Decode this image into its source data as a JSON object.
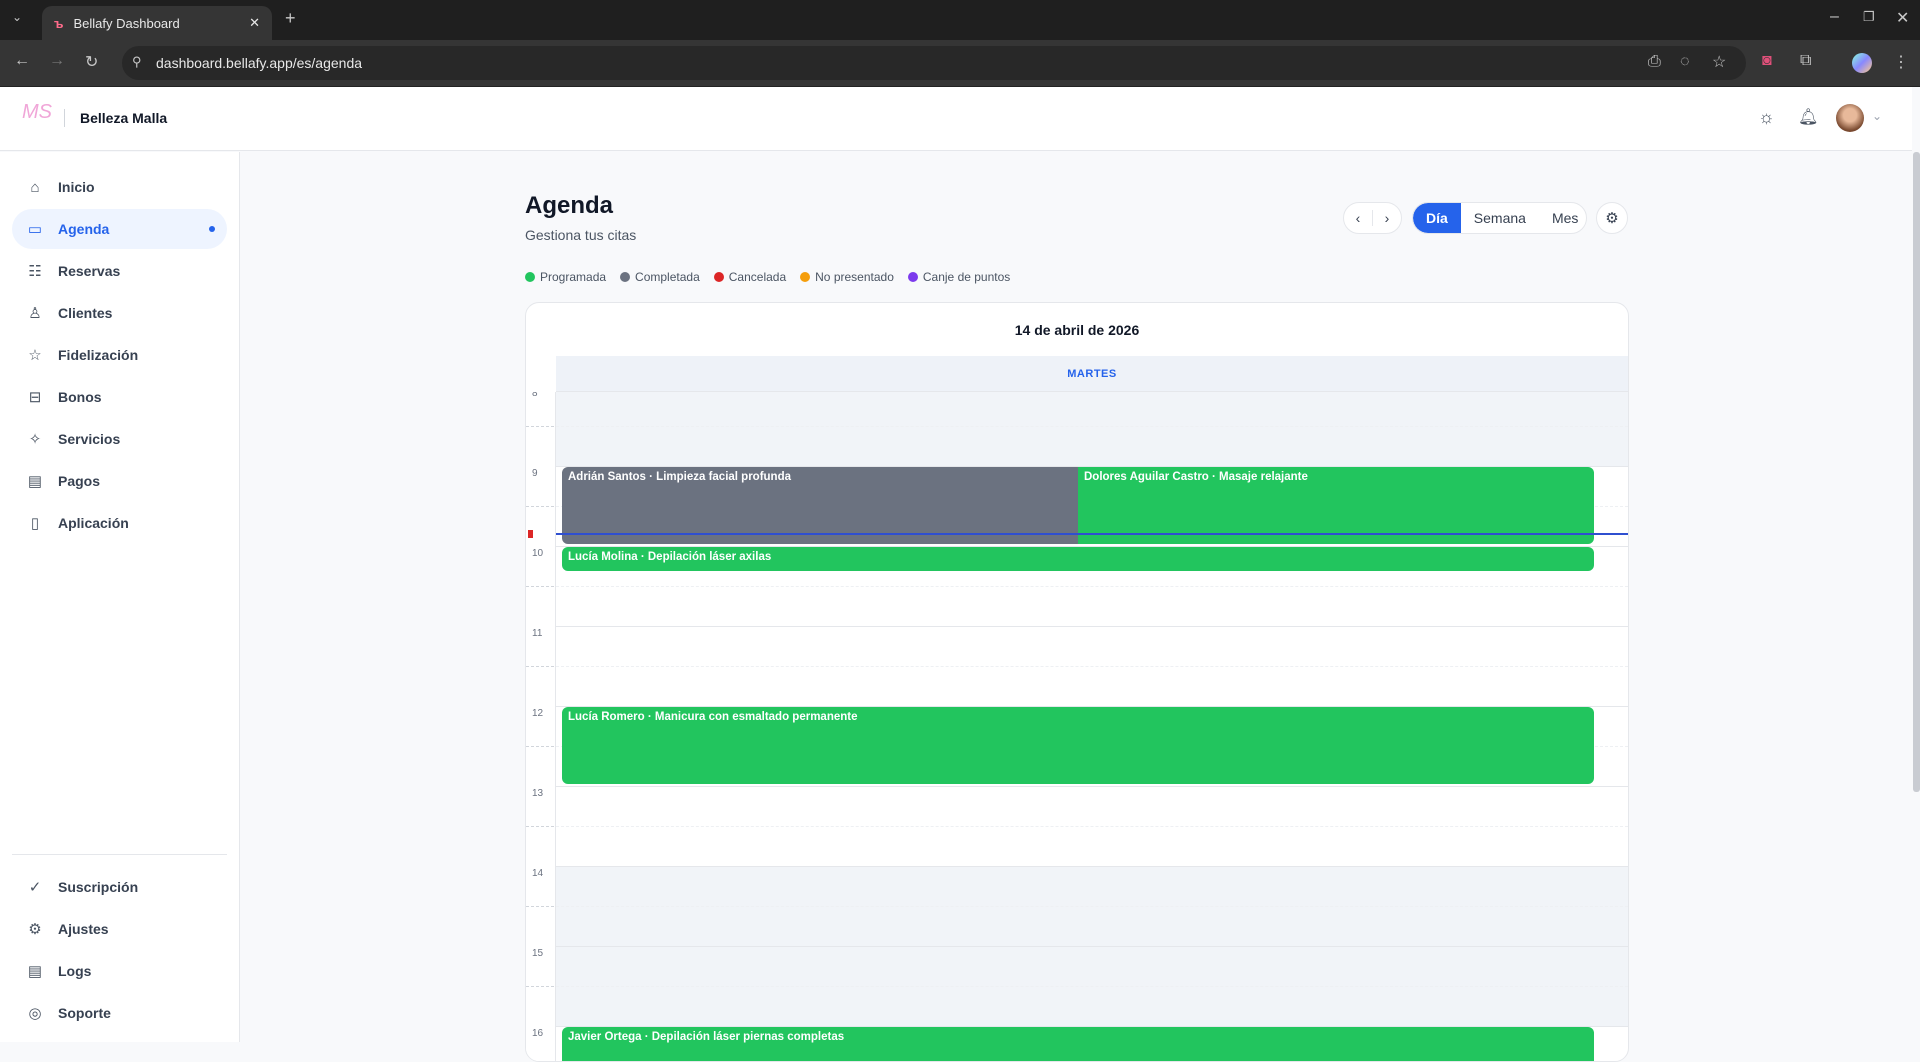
{
  "browser": {
    "tab_title": "Bellafy Dashboard",
    "url": "dashboard.bellafy.app/es/agenda"
  },
  "header": {
    "brand": "Belleza Malla",
    "logo_text": "MS"
  },
  "sidebar": {
    "items": [
      {
        "label": "Inicio",
        "icon": "home-icon",
        "glyph": "⌂"
      },
      {
        "label": "Agenda",
        "icon": "calendar-icon",
        "glyph": "▭",
        "active": true
      },
      {
        "label": "Reservas",
        "icon": "clipboard-icon",
        "glyph": "☷"
      },
      {
        "label": "Clientes",
        "icon": "users-icon",
        "glyph": "♙"
      },
      {
        "label": "Fidelización",
        "icon": "star-icon",
        "glyph": "☆"
      },
      {
        "label": "Bonos",
        "icon": "ticket-icon",
        "glyph": "⊟"
      },
      {
        "label": "Servicios",
        "icon": "sparkles-icon",
        "glyph": "✧"
      },
      {
        "label": "Pagos",
        "icon": "credit-card-icon",
        "glyph": "▤"
      },
      {
        "label": "Aplicación",
        "icon": "smartphone-icon",
        "glyph": "▯"
      }
    ],
    "bottom_items": [
      {
        "label": "Suscripción",
        "icon": "check-circle-icon",
        "glyph": "✓"
      },
      {
        "label": "Ajustes",
        "icon": "settings-icon",
        "glyph": "⚙"
      },
      {
        "label": "Logs",
        "icon": "file-icon",
        "glyph": "▤"
      },
      {
        "label": "Soporte",
        "icon": "lifebuoy-icon",
        "glyph": "◎"
      }
    ]
  },
  "page": {
    "title": "Agenda",
    "subtitle": "Gestiona tus citas"
  },
  "controls": {
    "prev": "‹",
    "next": "›",
    "views": [
      "Día",
      "Semana",
      "Mes"
    ],
    "active_view": "Día"
  },
  "legend": [
    {
      "label": "Programada",
      "color": "#22c55e"
    },
    {
      "label": "Completada",
      "color": "#6b7280"
    },
    {
      "label": "Cancelada",
      "color": "#dc2626"
    },
    {
      "label": "No presentado",
      "color": "#f59e0b"
    },
    {
      "label": "Canje de puntos",
      "color": "#7c3aed"
    }
  ],
  "calendar": {
    "date": "14 de abril de 2026",
    "weekday": "MARTES",
    "hours": [
      8,
      9,
      10,
      11,
      12,
      13,
      14,
      15,
      16
    ],
    "off_hours": [
      8,
      14,
      15
    ],
    "now": "09:50",
    "events": [
      {
        "title": "Adrián Santos · Limpieza facial profunda",
        "start": "09:00",
        "end": "10:00",
        "status": "Completada",
        "color": "#6b7280",
        "col": 0,
        "cols": 2
      },
      {
        "title": "Dolores Aguilar Castro · Masaje relajante",
        "start": "09:00",
        "end": "10:00",
        "status": "Programada",
        "color": "#22c55e",
        "col": 1,
        "cols": 2
      },
      {
        "title": "Lucía Molina · Depilación láser axilas",
        "start": "10:00",
        "end": "10:20",
        "status": "Programada",
        "color": "#22c55e",
        "col": 0,
        "cols": 1
      },
      {
        "title": "Lucía Romero · Manicura con esmaltado permanente",
        "start": "12:00",
        "end": "13:00",
        "status": "Programada",
        "color": "#22c55e",
        "col": 0,
        "cols": 1
      },
      {
        "title": "Javier Ortega · Depilación láser piernas completas",
        "start": "16:00",
        "end": "17:00",
        "status": "Programada",
        "color": "#22c55e",
        "col": 0,
        "cols": 1
      }
    ]
  }
}
